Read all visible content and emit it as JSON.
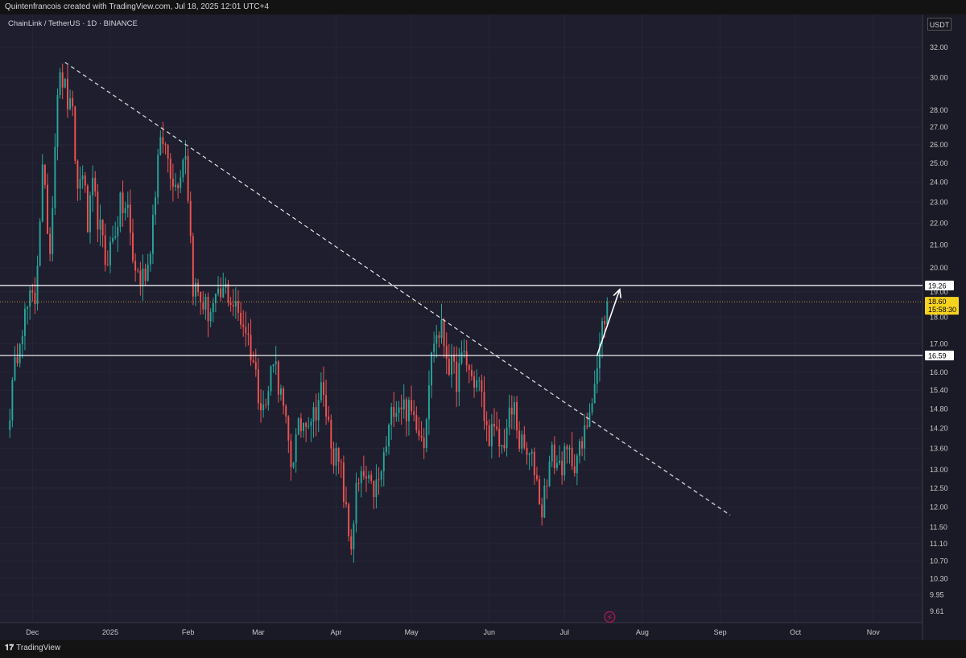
{
  "header": {
    "attribution": "Quintenfrancois created with TradingView.com, Jul 18, 2025 12:01 UTC+4",
    "symbol": "ChainLink / TetherUS · 1D · BINANCE",
    "currency": "USDT"
  },
  "footer": {
    "brand": "TradingView"
  },
  "colors": {
    "up": "#26a69a",
    "down": "#ef5350",
    "background": "#1e1e2e",
    "last_price": "#f7d31f"
  },
  "chart_data": {
    "type": "candlestick",
    "title": "",
    "x_ticks": [
      "Dec",
      "2025",
      "Feb",
      "Mar",
      "Apr",
      "May",
      "Jun",
      "Jul",
      "Aug",
      "Sep",
      "Oct",
      "Nov"
    ],
    "y_ticks": [
      32.0,
      30.0,
      28.0,
      27.0,
      26.0,
      25.0,
      24.0,
      23.0,
      22.0,
      21.0,
      20.0,
      19.0,
      18.0,
      17.0,
      16.0,
      15.4,
      14.8,
      14.2,
      13.6,
      13.0,
      12.5,
      12.0,
      11.5,
      11.1,
      10.7,
      10.3,
      9.95,
      9.61
    ],
    "y_scale": "log",
    "ylim": [
      9.4,
      33.2
    ],
    "levels": [
      {
        "label": "19.26",
        "value": 19.26
      },
      {
        "label": "16.59",
        "value": 16.59
      }
    ],
    "last_price": {
      "label": "18.60",
      "value": 18.6,
      "countdown": "15:58:30"
    },
    "trendline": {
      "style": "dashed",
      "from": {
        "date": "2024-12-14",
        "price": 31.0
      },
      "to": {
        "date": "2025-09-05",
        "price": 11.8
      }
    },
    "projection_arrow": {
      "from": {
        "date": "2025-07-14",
        "price": 16.6
      },
      "to": {
        "date": "2025-07-23",
        "price": 19.1
      }
    },
    "start_date": "2024-11-22",
    "anchors": [
      [
        "2024-11-22",
        14.8
      ],
      [
        "2024-11-26",
        17.5
      ],
      [
        "2024-11-30",
        18.6
      ],
      [
        "2024-12-02",
        18.7
      ],
      [
        "2024-12-05",
        24.5
      ],
      [
        "2024-12-08",
        20.8
      ],
      [
        "2024-12-11",
        29.5
      ],
      [
        "2024-12-13",
        29.9
      ],
      [
        "2024-12-15",
        28.5
      ],
      [
        "2024-12-17",
        27.5
      ],
      [
        "2024-12-19",
        23.5
      ],
      [
        "2024-12-21",
        24.8
      ],
      [
        "2024-12-23",
        21.8
      ],
      [
        "2024-12-25",
        23.6
      ],
      [
        "2024-12-27",
        22.3
      ],
      [
        "2024-12-30",
        20.3
      ],
      [
        "2025-01-02",
        21.2
      ],
      [
        "2025-01-05",
        22.8
      ],
      [
        "2025-01-08",
        22.6
      ],
      [
        "2025-01-10",
        20.3
      ],
      [
        "2025-01-13",
        19.5
      ],
      [
        "2025-01-16",
        20.1
      ],
      [
        "2025-01-18",
        22.3
      ],
      [
        "2025-01-20",
        25.2
      ],
      [
        "2025-01-22",
        26.3
      ],
      [
        "2025-01-24",
        25.3
      ],
      [
        "2025-01-27",
        23.8
      ],
      [
        "2025-01-31",
        25.8
      ],
      [
        "2025-02-02",
        21.3
      ],
      [
        "2025-02-03",
        19.3
      ],
      [
        "2025-02-06",
        18.7
      ],
      [
        "2025-02-09",
        18.2
      ],
      [
        "2025-02-13",
        18.6
      ],
      [
        "2025-02-16",
        19.1
      ],
      [
        "2025-02-20",
        18.3
      ],
      [
        "2025-02-24",
        17.6
      ],
      [
        "2025-02-27",
        16.4
      ],
      [
        "2025-03-01",
        15.4
      ],
      [
        "2025-03-04",
        14.8
      ],
      [
        "2025-03-07",
        16.7
      ],
      [
        "2025-03-10",
        15.2
      ],
      [
        "2025-03-12",
        14.2
      ],
      [
        "2025-03-14",
        13.2
      ],
      [
        "2025-03-17",
        14.1
      ],
      [
        "2025-03-20",
        14.6
      ],
      [
        "2025-03-23",
        14.6
      ],
      [
        "2025-03-26",
        15.4
      ],
      [
        "2025-03-28",
        14.7
      ],
      [
        "2025-03-31",
        13.5
      ],
      [
        "2025-04-03",
        12.9
      ],
      [
        "2025-04-06",
        11.3
      ],
      [
        "2025-04-07",
        11.1
      ],
      [
        "2025-04-09",
        12.4
      ],
      [
        "2025-04-12",
        12.8
      ],
      [
        "2025-04-15",
        12.4
      ],
      [
        "2025-04-18",
        12.6
      ],
      [
        "2025-04-21",
        13.7
      ],
      [
        "2025-04-24",
        15.0
      ],
      [
        "2025-04-27",
        15.0
      ],
      [
        "2025-04-30",
        14.7
      ],
      [
        "2025-05-03",
        14.5
      ],
      [
        "2025-05-06",
        13.9
      ],
      [
        "2025-05-08",
        15.8
      ],
      [
        "2025-05-10",
        17.2
      ],
      [
        "2025-05-13",
        17.5
      ],
      [
        "2025-05-16",
        16.3
      ],
      [
        "2025-05-19",
        15.8
      ],
      [
        "2025-05-22",
        16.6
      ],
      [
        "2025-05-25",
        15.8
      ],
      [
        "2025-05-28",
        15.6
      ],
      [
        "2025-05-31",
        14.1
      ],
      [
        "2025-06-03",
        14.0
      ],
      [
        "2025-06-06",
        13.6
      ],
      [
        "2025-06-09",
        14.5
      ],
      [
        "2025-06-11",
        14.8
      ],
      [
        "2025-06-13",
        13.8
      ],
      [
        "2025-06-16",
        13.4
      ],
      [
        "2025-06-19",
        13.1
      ],
      [
        "2025-06-22",
        11.9
      ],
      [
        "2025-06-24",
        12.9
      ],
      [
        "2025-06-26",
        13.4
      ],
      [
        "2025-06-29",
        13.1
      ],
      [
        "2025-07-02",
        13.4
      ],
      [
        "2025-07-05",
        13.3
      ],
      [
        "2025-07-08",
        13.6
      ],
      [
        "2025-07-10",
        14.4
      ],
      [
        "2025-07-12",
        15.4
      ],
      [
        "2025-07-14",
        16.1
      ],
      [
        "2025-07-16",
        17.6
      ],
      [
        "2025-07-18",
        18.6
      ]
    ]
  }
}
